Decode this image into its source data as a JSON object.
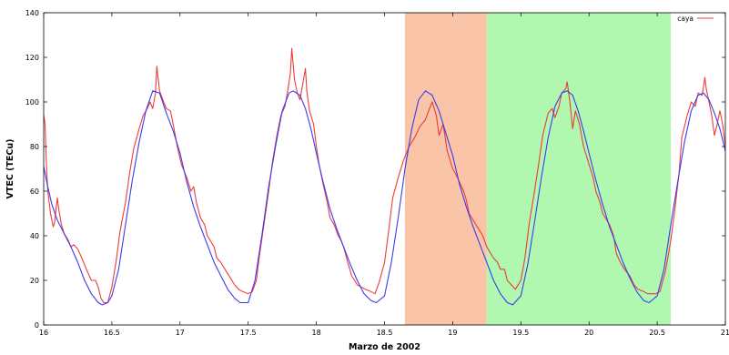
{
  "chart_data": {
    "type": "line",
    "xlabel": "Marzo de 2002",
    "ylabel": "VTEC (TECu)",
    "xlim": [
      16,
      21
    ],
    "ylim": [
      0,
      140
    ],
    "x_ticks": [
      16,
      16.5,
      17,
      17.5,
      18,
      18.5,
      19,
      19.5,
      20,
      20.5,
      21
    ],
    "x_tick_labels": [
      "16",
      "16.5",
      "17",
      "17.5",
      "18",
      "18.5",
      "19",
      "19.5",
      "20",
      "20.5",
      "21"
    ],
    "y_ticks": [
      0,
      20,
      40,
      60,
      80,
      100,
      120,
      140
    ],
    "y_tick_labels": [
      "0",
      "20",
      "40",
      "60",
      "80",
      "100",
      "120",
      "140"
    ],
    "grid": false,
    "legend_position": "top-right",
    "shaded_regions": [
      {
        "x_start": 18.65,
        "x_end": 19.25,
        "color": "#f9c4a8"
      },
      {
        "x_start": 19.25,
        "x_end": 20.6,
        "color": "#b0f7b0"
      }
    ],
    "series": [
      {
        "name": "caya",
        "color": "#ee3b3b",
        "points": [
          [
            16.0,
            94
          ],
          [
            16.01,
            90
          ],
          [
            16.02,
            72
          ],
          [
            16.03,
            60
          ],
          [
            16.05,
            50
          ],
          [
            16.07,
            44
          ],
          [
            16.08,
            46
          ],
          [
            16.1,
            57
          ],
          [
            16.11,
            52
          ],
          [
            16.13,
            45
          ],
          [
            16.15,
            41
          ],
          [
            16.18,
            38
          ],
          [
            16.2,
            35
          ],
          [
            16.22,
            36
          ],
          [
            16.25,
            34
          ],
          [
            16.28,
            30
          ],
          [
            16.3,
            27
          ],
          [
            16.32,
            24
          ],
          [
            16.35,
            20
          ],
          [
            16.38,
            20
          ],
          [
            16.4,
            17
          ],
          [
            16.42,
            12
          ],
          [
            16.44,
            10
          ],
          [
            16.47,
            10
          ],
          [
            16.5,
            17
          ],
          [
            16.53,
            28
          ],
          [
            16.56,
            42
          ],
          [
            16.6,
            55
          ],
          [
            16.63,
            68
          ],
          [
            16.66,
            79
          ],
          [
            16.7,
            88
          ],
          [
            16.73,
            94
          ],
          [
            16.76,
            97
          ],
          [
            16.78,
            100
          ],
          [
            16.8,
            97
          ],
          [
            16.82,
            104
          ],
          [
            16.83,
            116
          ],
          [
            16.85,
            105
          ],
          [
            16.88,
            100
          ],
          [
            16.9,
            97
          ],
          [
            16.93,
            96
          ],
          [
            16.95,
            90
          ],
          [
            16.98,
            80
          ],
          [
            17.01,
            72
          ],
          [
            17.05,
            66
          ],
          [
            17.08,
            60
          ],
          [
            17.1,
            62
          ],
          [
            17.12,
            55
          ],
          [
            17.15,
            48
          ],
          [
            17.18,
            45
          ],
          [
            17.2,
            40
          ],
          [
            17.22,
            38
          ],
          [
            17.25,
            35
          ],
          [
            17.27,
            30
          ],
          [
            17.3,
            28
          ],
          [
            17.33,
            25
          ],
          [
            17.36,
            22
          ],
          [
            17.4,
            18
          ],
          [
            17.43,
            16
          ],
          [
            17.46,
            15
          ],
          [
            17.5,
            14
          ],
          [
            17.53,
            15
          ],
          [
            17.56,
            20
          ],
          [
            17.58,
            30
          ],
          [
            17.62,
            47
          ],
          [
            17.65,
            60
          ],
          [
            17.68,
            74
          ],
          [
            17.71,
            85
          ],
          [
            17.74,
            94
          ],
          [
            17.77,
            98
          ],
          [
            17.79,
            105
          ],
          [
            17.81,
            113
          ],
          [
            17.82,
            124
          ],
          [
            17.84,
            110
          ],
          [
            17.86,
            104
          ],
          [
            17.88,
            101
          ],
          [
            17.9,
            108
          ],
          [
            17.92,
            115
          ],
          [
            17.93,
            105
          ],
          [
            17.95,
            96
          ],
          [
            17.98,
            90
          ],
          [
            18.0,
            80
          ],
          [
            18.02,
            72
          ],
          [
            18.05,
            63
          ],
          [
            18.08,
            55
          ],
          [
            18.1,
            48
          ],
          [
            18.13,
            45
          ],
          [
            18.16,
            40
          ],
          [
            18.18,
            38
          ],
          [
            18.2,
            35
          ],
          [
            18.23,
            28
          ],
          [
            18.26,
            22
          ],
          [
            18.3,
            18
          ],
          [
            18.33,
            17
          ],
          [
            18.36,
            16
          ],
          [
            18.4,
            15
          ],
          [
            18.43,
            14
          ],
          [
            18.46,
            19
          ],
          [
            18.5,
            28
          ],
          [
            18.53,
            42
          ],
          [
            18.56,
            57
          ],
          [
            18.6,
            66
          ],
          [
            18.64,
            74
          ],
          [
            18.68,
            80
          ],
          [
            18.72,
            84
          ],
          [
            18.76,
            89
          ],
          [
            18.8,
            92
          ],
          [
            18.83,
            97
          ],
          [
            18.85,
            100
          ],
          [
            18.88,
            94
          ],
          [
            18.9,
            85
          ],
          [
            18.93,
            90
          ],
          [
            18.96,
            78
          ],
          [
            19.0,
            70
          ],
          [
            19.02,
            68
          ],
          [
            19.05,
            64
          ],
          [
            19.08,
            60
          ],
          [
            19.1,
            56
          ],
          [
            19.12,
            50
          ],
          [
            19.15,
            47
          ],
          [
            19.18,
            44
          ],
          [
            19.22,
            40
          ],
          [
            19.25,
            35
          ],
          [
            19.28,
            32
          ],
          [
            19.3,
            30
          ],
          [
            19.33,
            28
          ],
          [
            19.35,
            25
          ],
          [
            19.38,
            25
          ],
          [
            19.4,
            20
          ],
          [
            19.43,
            18
          ],
          [
            19.46,
            16
          ],
          [
            19.5,
            20
          ],
          [
            19.53,
            30
          ],
          [
            19.56,
            45
          ],
          [
            19.6,
            60
          ],
          [
            19.63,
            72
          ],
          [
            19.66,
            85
          ],
          [
            19.7,
            95
          ],
          [
            19.73,
            97
          ],
          [
            19.75,
            93
          ],
          [
            19.78,
            98
          ],
          [
            19.8,
            104
          ],
          [
            19.83,
            106
          ],
          [
            19.84,
            109
          ],
          [
            19.86,
            100
          ],
          [
            19.88,
            88
          ],
          [
            19.9,
            96
          ],
          [
            19.93,
            90
          ],
          [
            19.96,
            80
          ],
          [
            20.0,
            72
          ],
          [
            20.03,
            66
          ],
          [
            20.05,
            60
          ],
          [
            20.08,
            55
          ],
          [
            20.1,
            50
          ],
          [
            20.12,
            48
          ],
          [
            20.15,
            45
          ],
          [
            20.18,
            40
          ],
          [
            20.2,
            32
          ],
          [
            20.23,
            28
          ],
          [
            20.26,
            25
          ],
          [
            20.3,
            22
          ],
          [
            20.33,
            18
          ],
          [
            20.36,
            16
          ],
          [
            20.4,
            15
          ],
          [
            20.43,
            14
          ],
          [
            20.46,
            14
          ],
          [
            20.49,
            14
          ],
          [
            20.52,
            15
          ],
          [
            20.56,
            24
          ],
          [
            20.6,
            38
          ],
          [
            20.63,
            52
          ],
          [
            20.66,
            68
          ],
          [
            20.68,
            84
          ],
          [
            20.72,
            94
          ],
          [
            20.75,
            100
          ],
          [
            20.78,
            98
          ],
          [
            20.8,
            104
          ],
          [
            20.83,
            103
          ],
          [
            20.85,
            111
          ],
          [
            20.86,
            106
          ],
          [
            20.88,
            100
          ],
          [
            20.9,
            94
          ],
          [
            20.92,
            85
          ],
          [
            20.94,
            90
          ],
          [
            20.96,
            96
          ],
          [
            20.98,
            90
          ],
          [
            21.0,
            80
          ]
        ]
      },
      {
        "name": "",
        "color": "#3b3bee",
        "points": [
          [
            16.0,
            71
          ],
          [
            16.03,
            62
          ],
          [
            16.06,
            54
          ],
          [
            16.1,
            47
          ],
          [
            16.15,
            41
          ],
          [
            16.2,
            35
          ],
          [
            16.25,
            28
          ],
          [
            16.3,
            20
          ],
          [
            16.35,
            14
          ],
          [
            16.4,
            10
          ],
          [
            16.43,
            9
          ],
          [
            16.47,
            10
          ],
          [
            16.5,
            13
          ],
          [
            16.55,
            25
          ],
          [
            16.6,
            45
          ],
          [
            16.65,
            65
          ],
          [
            16.7,
            82
          ],
          [
            16.75,
            96
          ],
          [
            16.8,
            105
          ],
          [
            16.85,
            104
          ],
          [
            16.9,
            95
          ],
          [
            16.95,
            87
          ],
          [
            17.0,
            77
          ],
          [
            17.05,
            64
          ],
          [
            17.1,
            53
          ],
          [
            17.15,
            44
          ],
          [
            17.2,
            36
          ],
          [
            17.25,
            28
          ],
          [
            17.3,
            22
          ],
          [
            17.35,
            16
          ],
          [
            17.4,
            12
          ],
          [
            17.44,
            10
          ],
          [
            17.5,
            10
          ],
          [
            17.55,
            20
          ],
          [
            17.6,
            40
          ],
          [
            17.65,
            62
          ],
          [
            17.7,
            80
          ],
          [
            17.75,
            96
          ],
          [
            17.8,
            104
          ],
          [
            17.83,
            105
          ],
          [
            17.88,
            103
          ],
          [
            17.92,
            97
          ],
          [
            17.96,
            88
          ],
          [
            18.0,
            77
          ],
          [
            18.05,
            64
          ],
          [
            18.1,
            52
          ],
          [
            18.15,
            43
          ],
          [
            18.2,
            35
          ],
          [
            18.25,
            27
          ],
          [
            18.3,
            20
          ],
          [
            18.35,
            14
          ],
          [
            18.4,
            11
          ],
          [
            18.44,
            10
          ],
          [
            18.5,
            13
          ],
          [
            18.55,
            28
          ],
          [
            18.6,
            48
          ],
          [
            18.65,
            70
          ],
          [
            18.7,
            88
          ],
          [
            18.75,
            101
          ],
          [
            18.8,
            105
          ],
          [
            18.85,
            103
          ],
          [
            18.9,
            96
          ],
          [
            18.95,
            86
          ],
          [
            19.0,
            76
          ],
          [
            19.05,
            63
          ],
          [
            19.1,
            53
          ],
          [
            19.15,
            44
          ],
          [
            19.2,
            36
          ],
          [
            19.25,
            28
          ],
          [
            19.3,
            20
          ],
          [
            19.35,
            14
          ],
          [
            19.4,
            10
          ],
          [
            19.44,
            9
          ],
          [
            19.5,
            13
          ],
          [
            19.55,
            27
          ],
          [
            19.6,
            46
          ],
          [
            19.65,
            66
          ],
          [
            19.7,
            84
          ],
          [
            19.75,
            98
          ],
          [
            19.8,
            104
          ],
          [
            19.84,
            105
          ],
          [
            19.88,
            103
          ],
          [
            19.92,
            96
          ],
          [
            19.96,
            87
          ],
          [
            20.0,
            77
          ],
          [
            20.05,
            65
          ],
          [
            20.1,
            54
          ],
          [
            20.15,
            44
          ],
          [
            20.2,
            36
          ],
          [
            20.25,
            28
          ],
          [
            20.3,
            21
          ],
          [
            20.35,
            15
          ],
          [
            20.4,
            11
          ],
          [
            20.44,
            10
          ],
          [
            20.5,
            13
          ],
          [
            20.55,
            25
          ],
          [
            20.6,
            45
          ],
          [
            20.65,
            64
          ],
          [
            20.7,
            82
          ],
          [
            20.75,
            96
          ],
          [
            20.8,
            103
          ],
          [
            20.84,
            104
          ],
          [
            20.88,
            101
          ],
          [
            20.92,
            95
          ],
          [
            20.96,
            88
          ],
          [
            21.0,
            78
          ]
        ]
      }
    ]
  }
}
